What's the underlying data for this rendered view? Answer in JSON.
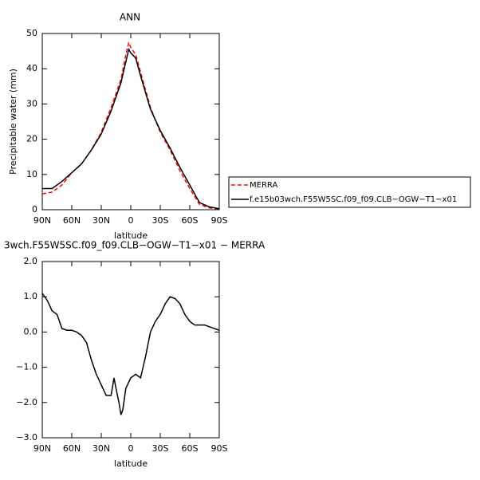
{
  "chart_data": [
    {
      "type": "line",
      "title": "ANN",
      "y_label": "Precipitable water (mm)",
      "x_label": "latitude",
      "x": [
        90,
        80,
        70,
        60,
        50,
        40,
        30,
        20,
        10,
        5,
        2,
        0,
        -5,
        -10,
        -20,
        -30,
        -40,
        -50,
        -60,
        -70,
        -80,
        -90
      ],
      "xlim": [
        90,
        -90
      ],
      "xticks": [
        {
          "value": 90,
          "label": "90N"
        },
        {
          "value": 60,
          "label": "60N"
        },
        {
          "value": 30,
          "label": "30N"
        },
        0,
        {
          "value": -30,
          "label": "30S"
        },
        {
          "value": -60,
          "label": "60S"
        },
        {
          "value": -90,
          "label": "90S"
        }
      ],
      "ylim": [
        0,
        50
      ],
      "yticks": [
        0,
        10,
        20,
        30,
        40,
        50
      ],
      "legend": "right",
      "series": [
        {
          "name": "MERRA",
          "color": "#ff0000",
          "dashed": true,
          "values": [
            4.5,
            5,
            7,
            10.5,
            13,
            17,
            22,
            29,
            37,
            44,
            47.5,
            46,
            44,
            39,
            29,
            22,
            17,
            11,
            6,
            1.5,
            0.5,
            0.2
          ]
        },
        {
          "name": "f.e15b03wch.F55W5SC.f09_f09.CLB−OGW−T1−x01",
          "color": "#000000",
          "dashed": false,
          "values": [
            6,
            6,
            8,
            10.5,
            13,
            17,
            21.5,
            28,
            36,
            42,
            45.5,
            44.5,
            43,
            38,
            28.5,
            22.5,
            17.5,
            12,
            7,
            2,
            0.8,
            0.3
          ]
        }
      ]
    },
    {
      "type": "line",
      "title": "3wch.F55W5SC.f09_f09.CLB−OGW−T1−x01 − MERRA",
      "x_label": "latitude",
      "x": [
        90,
        85,
        80,
        75,
        70,
        65,
        60,
        55,
        50,
        45,
        40,
        35,
        30,
        25,
        20,
        17,
        15,
        12,
        10,
        8,
        5,
        0,
        -5,
        -10,
        -15,
        -20,
        -25,
        -30,
        -35,
        -40,
        -45,
        -50,
        -55,
        -60,
        -65,
        -70,
        -75,
        -80,
        -85,
        -90
      ],
      "xlim": [
        90,
        -90
      ],
      "xticks": [
        {
          "value": 90,
          "label": "90N"
        },
        {
          "value": 60,
          "label": "60N"
        },
        {
          "value": 30,
          "label": "30N"
        },
        0,
        {
          "value": -30,
          "label": "30S"
        },
        {
          "value": -60,
          "label": "60S"
        },
        {
          "value": -90,
          "label": "90S"
        }
      ],
      "ylim": [
        -3,
        2
      ],
      "yticks": [
        {
          "value": -3,
          "label": "−3.0"
        },
        {
          "value": -2,
          "label": "−2.0"
        },
        {
          "value": -1,
          "label": "−1.0"
        },
        {
          "value": 0,
          "label": "0.0"
        },
        {
          "value": 1,
          "label": "1.0"
        },
        {
          "value": 2,
          "label": "2.0"
        }
      ],
      "series": [
        {
          "color": "#000000",
          "dashed": false,
          "values": [
            1.1,
            0.9,
            0.6,
            0.5,
            0.1,
            0.05,
            0.05,
            0.0,
            -0.1,
            -0.3,
            -0.8,
            -1.2,
            -1.5,
            -1.8,
            -1.8,
            -1.3,
            -1.6,
            -2.0,
            -2.35,
            -2.2,
            -1.6,
            -1.3,
            -1.2,
            -1.3,
            -0.7,
            0.0,
            0.3,
            0.5,
            0.8,
            1.0,
            0.95,
            0.8,
            0.5,
            0.3,
            0.2,
            0.2,
            0.2,
            0.15,
            0.1,
            0.05
          ]
        }
      ]
    }
  ]
}
